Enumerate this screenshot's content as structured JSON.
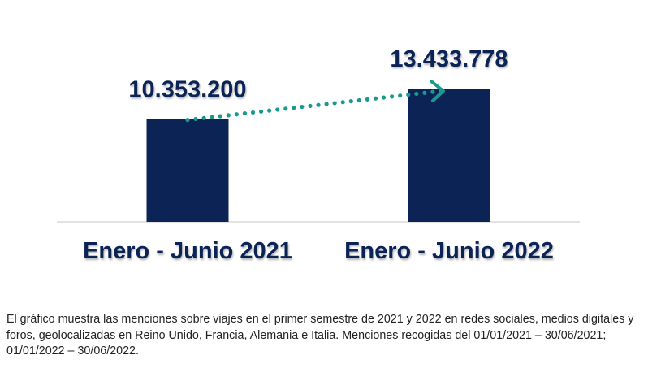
{
  "chart_data": {
    "type": "bar",
    "categories": [
      "Enero - Junio 2021",
      "Enero - Junio 2022"
    ],
    "values": [
      10353200,
      13433778
    ],
    "data_labels": [
      "10.353.200",
      "13.433.778"
    ],
    "title": "",
    "xlabel": "",
    "ylabel": "",
    "grid": false,
    "legend": "none",
    "annotations": [
      {
        "type": "dotted-arrow",
        "from": "Enero - Junio 2021",
        "to": "Enero - Junio 2022"
      }
    ],
    "colors": {
      "bar": "#0b2455",
      "arrow": "#1a9a8f",
      "axis": "#d9d9d9",
      "label": "#0b2455"
    }
  },
  "caption": "El gráfico muestra las menciones sobre viajes en el primer semestre de 2021 y 2022 en redes sociales, medios digitales y foros, geolocalizadas en Reino Unido, Francia, Alemania e Italia. Menciones recogidas del 01/01/2021 – 30/06/2021; 01/01/2022 – 30/06/2022."
}
